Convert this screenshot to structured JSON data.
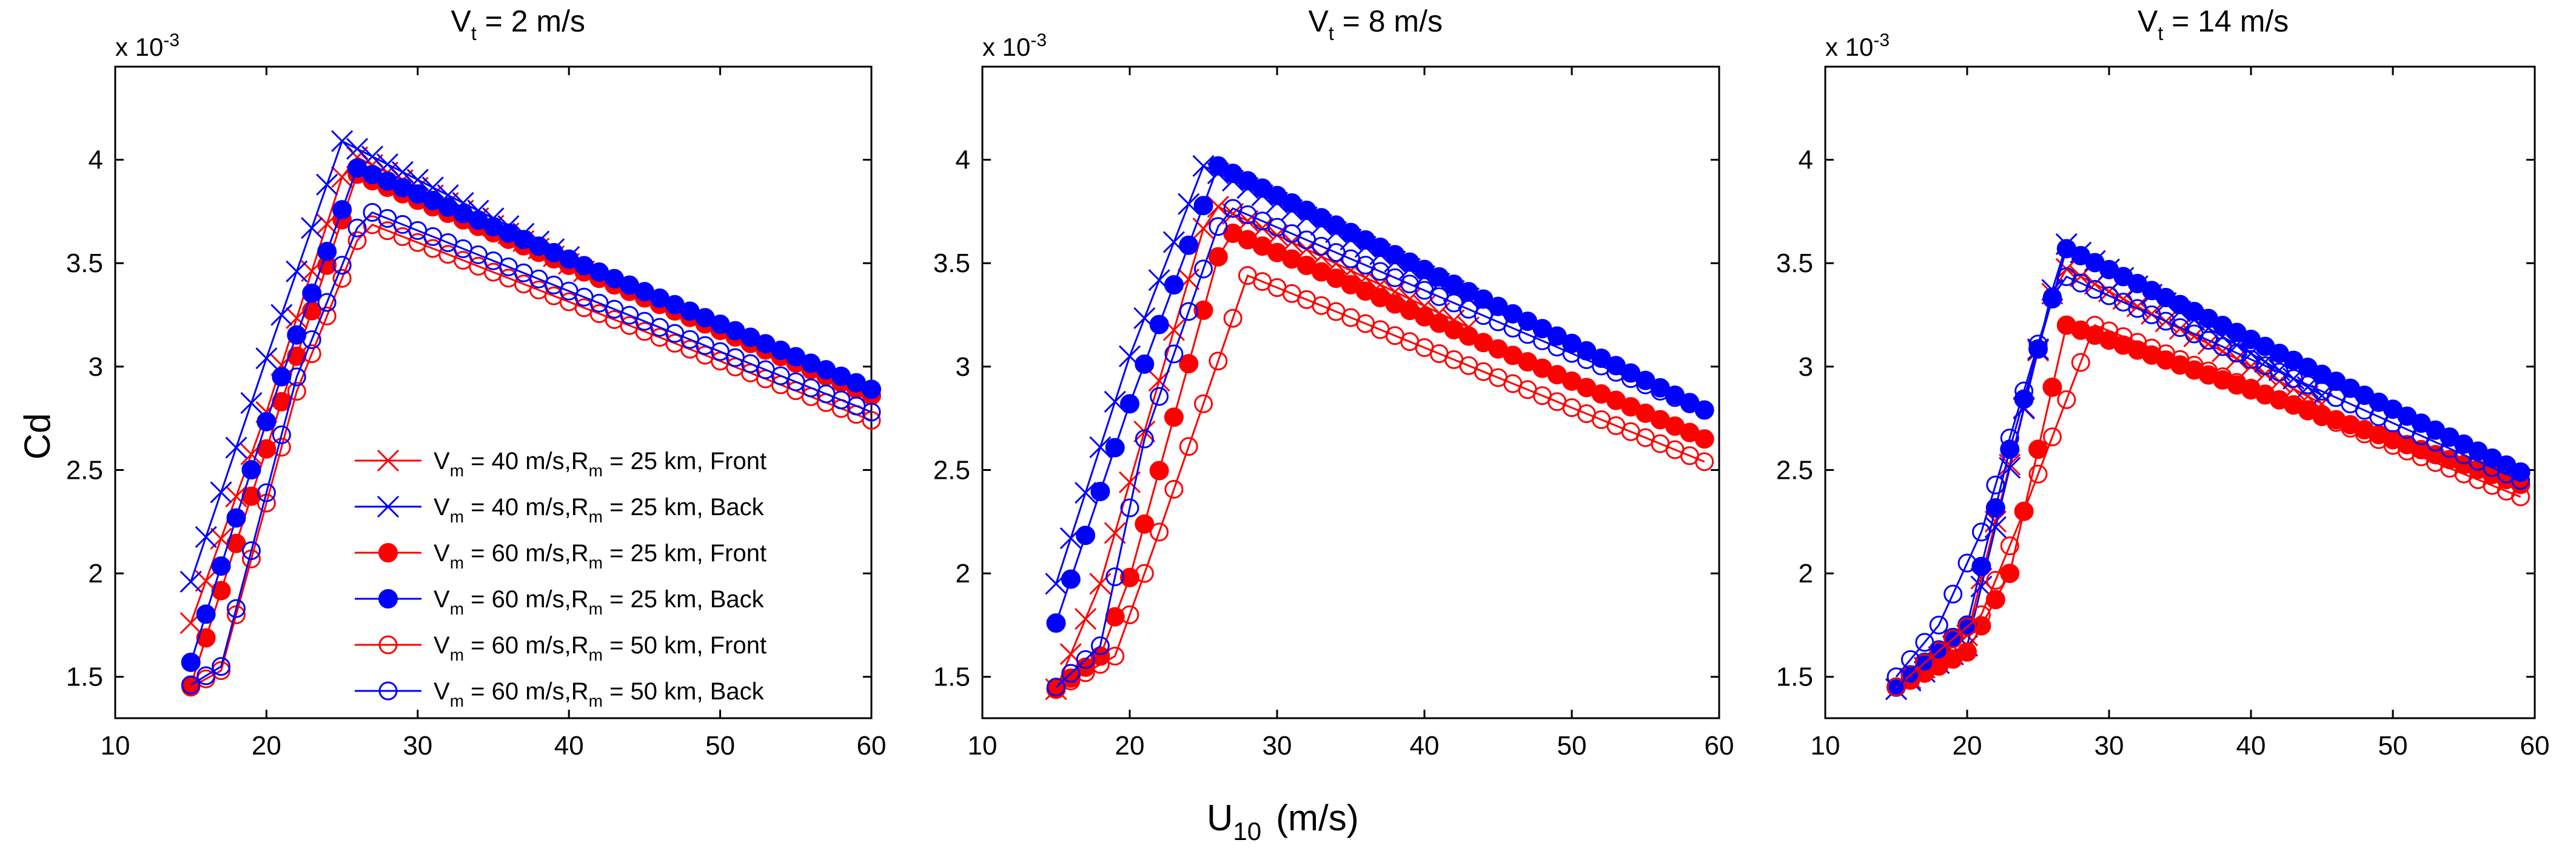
{
  "figure": {
    "ylabel": "Cd",
    "xlabel_main": "U",
    "xlabel_sub": "10",
    "xlabel_unit": "(m/s)",
    "scale_label": "x 10",
    "scale_exp": "-3"
  },
  "colors": {
    "red": "#ff0000",
    "blue": "#0000ff"
  },
  "chart_data": [
    {
      "type": "line",
      "title_main": "V",
      "title_sub": "t",
      "title_rest": " = 2 m/s",
      "xlim": [
        10,
        60
      ],
      "ylim": [
        1.3,
        4.45
      ],
      "xticks": [
        10,
        20,
        30,
        40,
        50,
        60
      ],
      "yticks": [
        1.5,
        2,
        2.5,
        3,
        3.5,
        4
      ],
      "y_scale_factor": "x 10^-3",
      "grid": false,
      "legend_placement": "lower-right",
      "series": [
        {
          "name": "V_m = 40 m/s,R_m = 25 km, Front",
          "label_parts": [
            "V",
            "m",
            " = 40 m/s,R",
            "m",
            " = 25 km, Front"
          ],
          "color": "#ff0000",
          "marker": "x",
          "x": [
            15,
            20,
            25.5,
            41
          ],
          "y": [
            1.76,
            2.78,
            4.03,
            3.46
          ]
        },
        {
          "name": "V_m = 40 m/s,R_m = 25 km, Back",
          "label_parts": [
            "V",
            "m",
            " = 40 m/s,R",
            "m",
            " = 25 km, Back"
          ],
          "color": "#0000ff",
          "marker": "x",
          "x": [
            15,
            20,
            25,
            40
          ],
          "y": [
            1.96,
            3.04,
            4.09,
            3.53
          ]
        },
        {
          "name": "V_m = 60 m/s,R_m = 25 km, Front",
          "label_parts": [
            "V",
            "m",
            " = 60 m/s,R",
            "m",
            " = 25 km, Front"
          ],
          "color": "#ff0000",
          "marker": "filled-circle",
          "x": [
            15,
            21,
            26,
            60
          ],
          "y": [
            1.46,
            2.83,
            3.93,
            2.86
          ]
        },
        {
          "name": "V_m = 60 m/s,R_m = 25 km, Back",
          "label_parts": [
            "V",
            "m",
            " = 60 m/s,R",
            "m",
            " = 25 km, Back"
          ],
          "color": "#0000ff",
          "marker": "filled-circle",
          "x": [
            15,
            20.5,
            26,
            60
          ],
          "y": [
            1.57,
            2.85,
            3.96,
            2.89
          ]
        },
        {
          "name": "V_m = 60 m/s,R_m = 50 km, Front",
          "label_parts": [
            "V",
            "m",
            " = 60 m/s,R",
            "m",
            " = 50 km, Front"
          ],
          "color": "#ff0000",
          "marker": "open-circle",
          "x": [
            15,
            17,
            22,
            26.5,
            60
          ],
          "y": [
            1.45,
            1.53,
            2.88,
            3.7,
            2.74
          ]
        },
        {
          "name": "V_m = 60 m/s,R_m = 50 km, Back",
          "label_parts": [
            "V",
            "m",
            " = 60 m/s,R",
            "m",
            " = 50 km, Back"
          ],
          "color": "#0000ff",
          "marker": "open-circle",
          "x": [
            15,
            17,
            22,
            26.5,
            60
          ],
          "y": [
            1.46,
            1.55,
            2.95,
            3.76,
            2.78
          ]
        }
      ]
    },
    {
      "type": "line",
      "title_main": "V",
      "title_sub": "t",
      "title_rest": " = 8 m/s",
      "xlim": [
        10,
        60
      ],
      "ylim": [
        1.3,
        4.45
      ],
      "xticks": [
        10,
        20,
        30,
        40,
        50,
        60
      ],
      "yticks": [
        1.5,
        2,
        2.5,
        3,
        3.5,
        4
      ],
      "y_scale_factor": "x 10^-3",
      "grid": false,
      "series": [
        {
          "name": "V_m = 40 m/s,R_m = 25 km, Front",
          "color": "#ff0000",
          "marker": "x",
          "x": [
            15,
            18,
            25.5,
            43
          ],
          "y": [
            1.44,
            1.95,
            3.79,
            3.19
          ]
        },
        {
          "name": "V_m = 40 m/s,R_m = 25 km, Back",
          "color": "#0000ff",
          "marker": "x",
          "x": [
            15,
            20,
            25,
            43
          ],
          "y": [
            1.95,
            3.05,
            3.97,
            3.33
          ]
        },
        {
          "name": "V_m = 60 m/s,R_m = 25 km, Front",
          "color": "#ff0000",
          "marker": "filled-circle",
          "x": [
            15,
            18,
            20,
            26.5,
            59
          ],
          "y": [
            1.44,
            1.6,
            1.98,
            3.66,
            2.65
          ]
        },
        {
          "name": "V_m = 60 m/s,R_m = 25 km, Back",
          "color": "#0000ff",
          "marker": "filled-circle",
          "x": [
            15,
            20,
            26,
            59
          ],
          "y": [
            1.76,
            2.82,
            3.97,
            2.79
          ]
        },
        {
          "name": "V_m = 60 m/s,R_m = 50 km, Front",
          "color": "#ff0000",
          "marker": "open-circle",
          "x": [
            15,
            19,
            22,
            28,
            59
          ],
          "y": [
            1.44,
            1.6,
            2.2,
            3.44,
            2.54
          ]
        },
        {
          "name": "V_m = 60 m/s,R_m = 50 km, Back",
          "color": "#0000ff",
          "marker": "open-circle",
          "x": [
            15,
            18,
            21,
            26.5,
            58
          ],
          "y": [
            1.45,
            1.65,
            2.65,
            3.78,
            2.82
          ]
        }
      ]
    },
    {
      "type": "line",
      "title_main": "V",
      "title_sub": "t",
      "title_rest": " = 14 m/s",
      "xlim": [
        10,
        60
      ],
      "ylim": [
        1.3,
        4.45
      ],
      "xticks": [
        10,
        20,
        30,
        40,
        50,
        60
      ],
      "yticks": [
        1.5,
        2,
        2.5,
        3,
        3.5,
        4
      ],
      "y_scale_factor": "x 10^-3",
      "grid": false,
      "series": [
        {
          "name": "V_m = 40 m/s,R_m = 25 km, Front",
          "color": "#ff0000",
          "marker": "x",
          "x": [
            15,
            20,
            26.5,
            45
          ],
          "y": [
            1.44,
            1.7,
            3.49,
            2.82
          ]
        },
        {
          "name": "V_m = 40 m/s,R_m = 25 km, Back",
          "color": "#0000ff",
          "marker": "x",
          "x": [
            15,
            20,
            26.8,
            45
          ],
          "y": [
            1.44,
            1.65,
            3.6,
            2.86
          ]
        },
        {
          "name": "V_m = 60 m/s,R_m = 25 km, Front",
          "color": "#ff0000",
          "marker": "filled-circle",
          "x": [
            15,
            20,
            23,
            27,
            59
          ],
          "y": [
            1.45,
            1.62,
            2.0,
            3.2,
            2.43
          ]
        },
        {
          "name": "V_m = 60 m/s,R_m = 25 km, Back",
          "color": "#0000ff",
          "marker": "filled-circle",
          "x": [
            15,
            20,
            23,
            27,
            59
          ],
          "y": [
            1.45,
            1.75,
            2.6,
            3.57,
            2.49
          ]
        },
        {
          "name": "V_m = 60 m/s,R_m = 50 km, Front",
          "color": "#ff0000",
          "marker": "open-circle",
          "x": [
            15,
            21,
            24,
            29,
            59
          ],
          "y": [
            1.45,
            1.8,
            2.3,
            3.2,
            2.37
          ]
        },
        {
          "name": "V_m = 60 m/s,R_m = 50 km, Back",
          "color": "#0000ff",
          "marker": "open-circle",
          "x": [
            15,
            18,
            21,
            26.5,
            59
          ],
          "y": [
            1.5,
            1.75,
            2.2,
            3.45,
            2.45
          ]
        }
      ]
    }
  ]
}
